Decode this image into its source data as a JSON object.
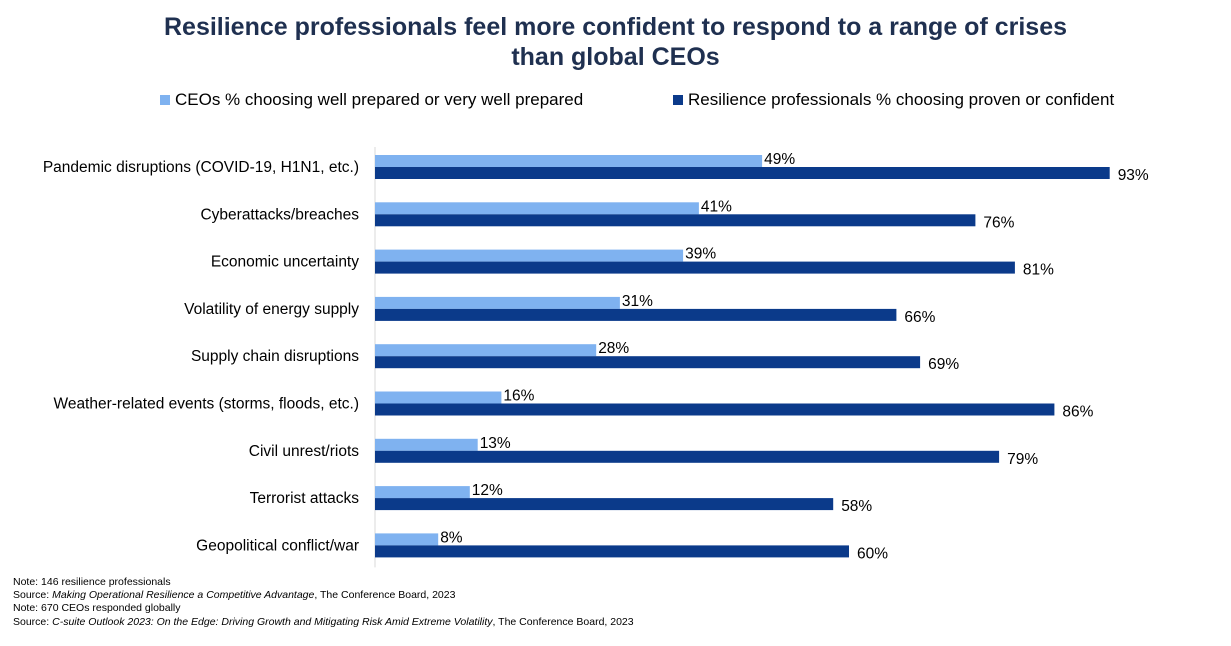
{
  "chart_data": {
    "type": "bar",
    "orientation": "horizontal",
    "title": "Resilience professionals feel more confident to respond to a range of crises than global CEOs",
    "title_lines": [
      "Resilience professionals feel more confident to respond to a range of crises",
      "than global CEOs"
    ],
    "categories": [
      "Pandemic disruptions (COVID-19, H1N1, etc.)",
      "Cyberattacks/breaches",
      "Economic uncertainty",
      "Volatility of energy supply",
      "Supply chain disruptions",
      "Weather-related events (storms, floods, etc.)",
      "Civil unrest/riots",
      "Terrorist attacks",
      "Geopolitical conflict/war"
    ],
    "series": [
      {
        "name": "CEOs % choosing well prepared or very well prepared",
        "color": "#7fb2f0",
        "values": [
          49,
          41,
          39,
          31,
          28,
          16,
          13,
          12,
          8
        ],
        "labels": [
          "49%",
          "41%",
          "39%",
          "31%",
          "28%",
          "16%",
          "13%",
          "12%",
          "8%"
        ]
      },
      {
        "name": "Resilience professionals % choosing proven or confident",
        "color": "#0b3a8a",
        "values": [
          93,
          76,
          81,
          66,
          69,
          86,
          79,
          58,
          60
        ],
        "labels": [
          "93%",
          "76%",
          "81%",
          "66%",
          "69%",
          "86%",
          "79%",
          "58%",
          "60%"
        ]
      }
    ],
    "xlim": [
      0,
      100
    ],
    "grid": false,
    "legend_position": "top"
  },
  "notes": [
    {
      "prefix": "Note: 146 resilience professionals",
      "italic": "",
      "suffix": ""
    },
    {
      "prefix": "Source: ",
      "italic": "Making Operational Resilience a Competitive Advantage",
      "suffix": ", The Conference Board, 2023"
    },
    {
      "prefix": "Note: 670 CEOs responded globally",
      "italic": "",
      "suffix": ""
    },
    {
      "prefix": "Source: ",
      "italic": "C-suite Outlook 2023: On the Edge: Driving Growth and Mitigating Risk Amid Extreme Volatility",
      "suffix": ", The Conference Board, 2023"
    }
  ]
}
